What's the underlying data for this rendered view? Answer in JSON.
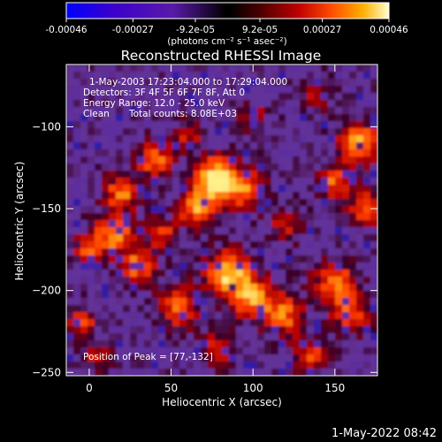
{
  "colorbar": {
    "tick_labels": [
      "-0.00046",
      "-0.00027",
      "-9.2e-05",
      "9.2e-05",
      "0.00027",
      "0.00046"
    ],
    "tick_values": [
      -0.00046,
      -0.00027,
      -9.2e-05,
      9.2e-05,
      0.00027,
      0.00046
    ],
    "range": [
      -0.00046,
      0.00046
    ],
    "units_label": "(photons cm⁻² s⁻¹ asec⁻²)",
    "colors": [
      "#0000ff",
      "#3a00cc",
      "#5a1aa8",
      "#000000",
      "#3a0000",
      "#a00000",
      "#ff2a00",
      "#ff8a00",
      "#ffd84a",
      "#ffffff"
    ]
  },
  "chart_data": {
    "type": "heatmap",
    "title": "Reconstructed RHESSI Image",
    "xlabel": "Heliocentric X (arcsec)",
    "ylabel": "Heliocentric Y (arcsec)",
    "xlim": [
      -14,
      176
    ],
    "ylim": [
      -252,
      -62
    ],
    "x_ticks": [
      0,
      50,
      100,
      150
    ],
    "y_ticks": [
      -100,
      -150,
      -200,
      -250
    ],
    "peak_position": [
      77,
      -132
    ],
    "annotations": {
      "time": "1-May-2003 17:23:04.000 to 17:29:04.000",
      "detectors": "Detectors: 3F 4F 5F 6F 7F 8F, Att 0",
      "energy": "Energy Range: 12.0 - 25.0 keV",
      "clean": "Clean",
      "counts": "Total counts: 8.08E+03",
      "peak": "Position of Peak = [77,-132]"
    }
  },
  "footer": {
    "timestamp": "1-May-2022 08:42"
  }
}
